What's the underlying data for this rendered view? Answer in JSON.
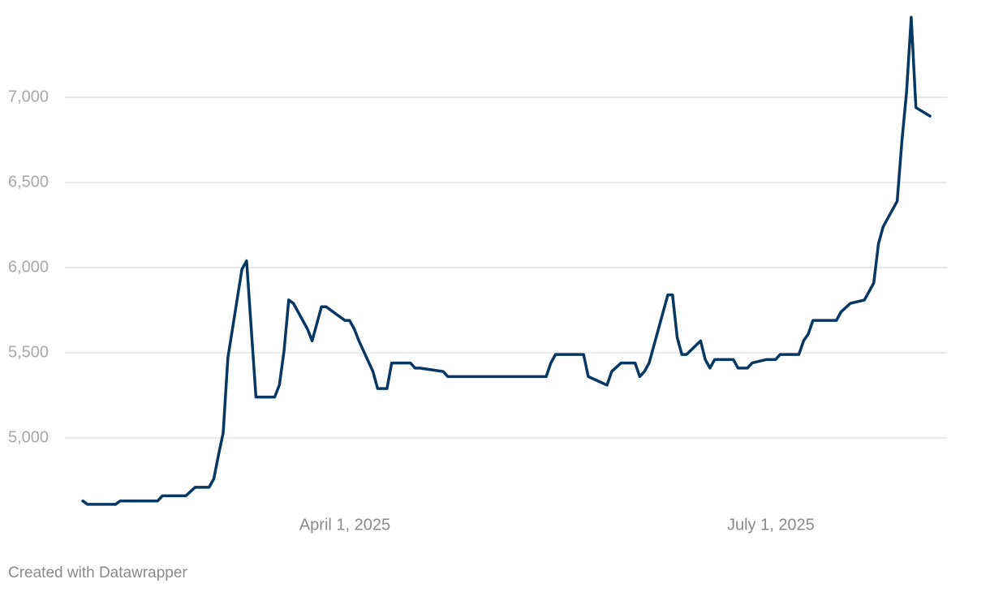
{
  "chart_data": {
    "type": "line",
    "x": [
      "2025-02-04",
      "2025-02-05",
      "2025-02-11",
      "2025-02-12",
      "2025-02-20",
      "2025-02-21",
      "2025-02-26",
      "2025-02-28",
      "2025-03-03",
      "2025-03-04",
      "2025-03-05",
      "2025-03-06",
      "2025-03-07",
      "2025-03-10",
      "2025-03-11",
      "2025-03-13",
      "2025-03-17",
      "2025-03-18",
      "2025-03-19",
      "2025-03-20",
      "2025-03-21",
      "2025-03-24",
      "2025-03-25",
      "2025-03-27",
      "2025-03-28",
      "2025-03-31",
      "2025-04-01",
      "2025-04-02",
      "2025-04-03",
      "2025-04-04",
      "2025-04-07",
      "2025-04-08",
      "2025-04-10",
      "2025-04-11",
      "2025-04-15",
      "2025-04-16",
      "2025-04-17",
      "2025-04-22",
      "2025-04-23",
      "2025-05-14",
      "2025-05-15",
      "2025-05-16",
      "2025-05-22",
      "2025-05-23",
      "2025-05-27",
      "2025-05-28",
      "2025-05-30",
      "2025-06-02",
      "2025-06-03",
      "2025-06-04",
      "2025-06-05",
      "2025-06-09",
      "2025-06-10",
      "2025-06-11",
      "2025-06-12",
      "2025-06-13",
      "2025-06-16",
      "2025-06-17",
      "2025-06-18",
      "2025-06-19",
      "2025-06-23",
      "2025-06-24",
      "2025-06-26",
      "2025-06-27",
      "2025-06-30",
      "2025-07-02",
      "2025-07-03",
      "2025-07-07",
      "2025-07-08",
      "2025-07-09",
      "2025-07-10",
      "2025-07-15",
      "2025-07-16",
      "2025-07-18",
      "2025-07-21",
      "2025-07-23",
      "2025-07-24",
      "2025-07-25",
      "2025-07-28",
      "2025-07-29",
      "2025-07-30",
      "2025-07-31",
      "2025-08-01",
      "2025-08-04"
    ],
    "series": [
      {
        "color": "#073763",
        "values": [
          4630,
          4610,
          4610,
          4630,
          4630,
          4660,
          4660,
          4710,
          4710,
          4760,
          4900,
          5030,
          5470,
          5990,
          6040,
          5240,
          5240,
          5310,
          5510,
          5810,
          5790,
          5640,
          5570,
          5770,
          5770,
          5710,
          5690,
          5690,
          5640,
          5570,
          5390,
          5290,
          5290,
          5440,
          5440,
          5410,
          5410,
          5390,
          5360,
          5360,
          5440,
          5490,
          5490,
          5360,
          5310,
          5390,
          5440,
          5440,
          5360,
          5390,
          5440,
          5840,
          5840,
          5590,
          5490,
          5490,
          5570,
          5460,
          5410,
          5460,
          5460,
          5410,
          5410,
          5440,
          5460,
          5460,
          5490,
          5490,
          5570,
          5610,
          5690,
          5690,
          5740,
          5790,
          5810,
          5910,
          6140,
          6240,
          6390,
          6740,
          7030,
          7470,
          6940,
          6890
        ]
      }
    ],
    "xlim": [
      "2025-02-04",
      "2025-08-04"
    ],
    "xticks": [
      {
        "value": "2025-04-01",
        "label": "April 1, 2025"
      },
      {
        "value": "2025-07-01",
        "label": "July 1, 2025"
      }
    ],
    "ylim": [
      4600,
      7500
    ],
    "yticks": [
      {
        "value": 5000,
        "label": "5,000"
      },
      {
        "value": 5500,
        "label": "5,500"
      },
      {
        "value": 6000,
        "label": "6,000"
      },
      {
        "value": 6500,
        "label": "6,500"
      },
      {
        "value": 7000,
        "label": "7,000"
      }
    ],
    "grid": true,
    "footer": "Created with Datawrapper"
  }
}
